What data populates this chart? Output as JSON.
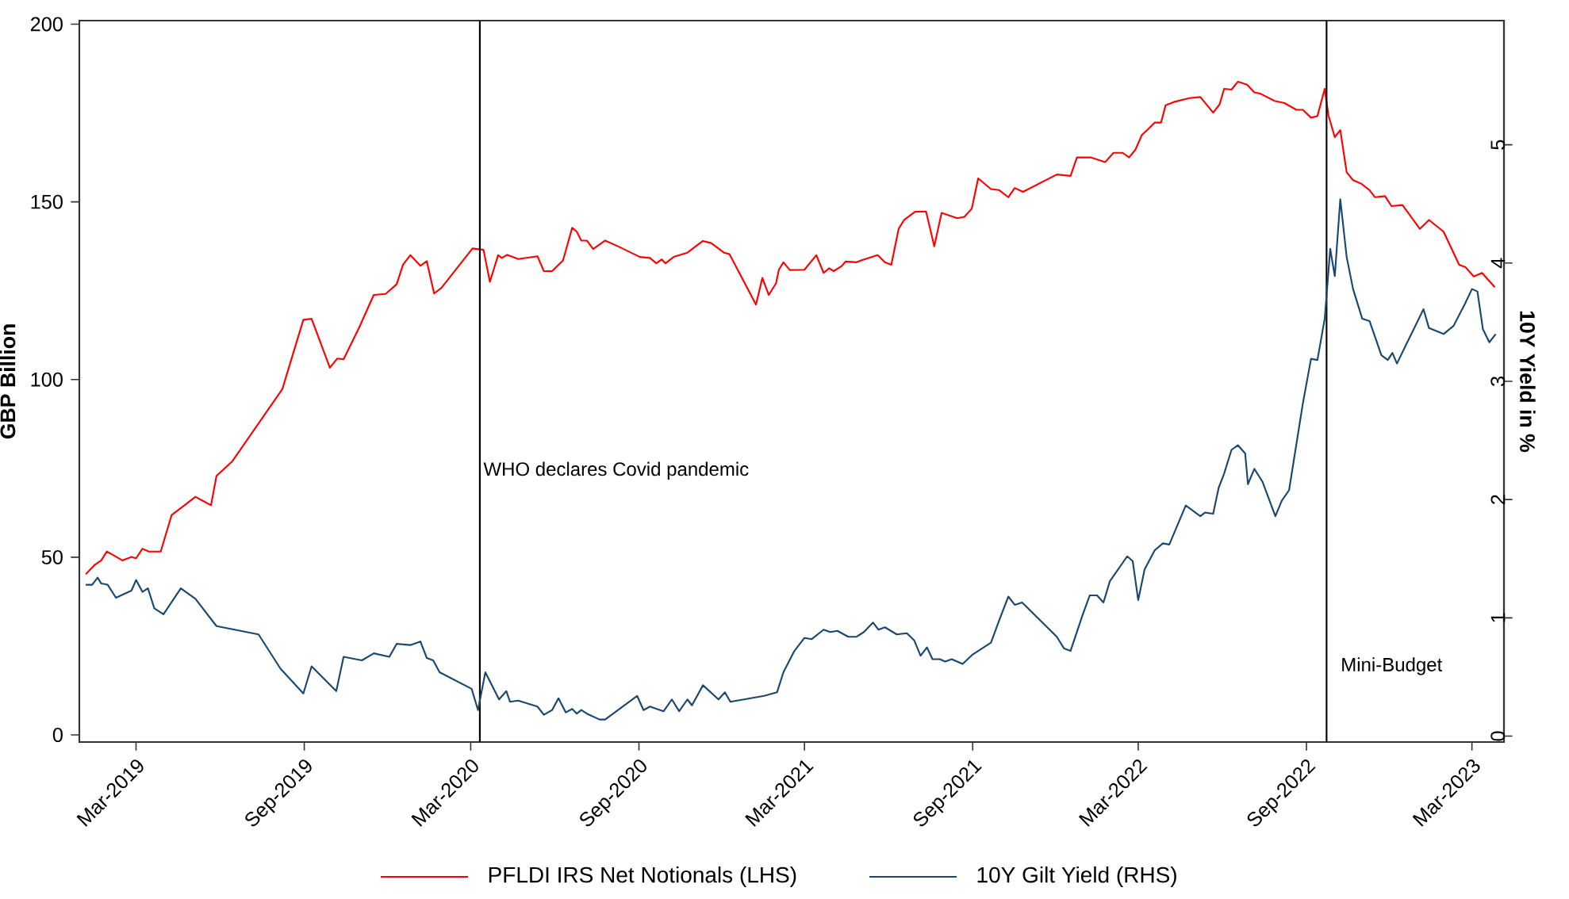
{
  "chart_data": {
    "type": "line",
    "xlabel": null,
    "ylabel": "GBP Billion",
    "y2label": "10Y Yield in %",
    "xlim": [
      "2018-12-29",
      "2023-04-05"
    ],
    "xticks": [
      {
        "value": "2019-03-01",
        "label": "Mar-2019"
      },
      {
        "value": "2019-09-01",
        "label": "Sep-2019"
      },
      {
        "value": "2020-03-01",
        "label": "Mar-2020"
      },
      {
        "value": "2020-09-01",
        "label": "Sep-2020"
      },
      {
        "value": "2021-03-01",
        "label": "Mar-2021"
      },
      {
        "value": "2021-09-01",
        "label": "Sep-2021"
      },
      {
        "value": "2022-03-01",
        "label": "Mar-2022"
      },
      {
        "value": "2022-09-01",
        "label": "Sep-2022"
      },
      {
        "value": "2023-03-01",
        "label": "Mar-2023"
      }
    ],
    "ylim": [
      -2,
      201
    ],
    "yticks": [
      0,
      50,
      100,
      150,
      200
    ],
    "y2lim": [
      -0.05,
      6.05
    ],
    "y2ticks": [
      0,
      1,
      2,
      3,
      4,
      5
    ],
    "grid": false,
    "legend": "bottom",
    "ref_lines": [
      {
        "axis": "x",
        "value": "2020-03-11",
        "label": "WHO declares Covid pandemic",
        "color": "#000000"
      },
      {
        "axis": "x",
        "value": "2022-09-23",
        "label": "Mini-Budget",
        "color": "#000000"
      }
    ],
    "series": [
      {
        "name": "PFLDI IRS Net Notionals (LHS)",
        "color": "#ff0000",
        "axis": "y",
        "x": [
          "2019-01-05",
          "2019-01-15",
          "2019-01-22",
          "2019-01-28",
          "2019-02-04",
          "2019-02-14",
          "2019-02-24",
          "2019-03-01",
          "2019-03-08",
          "2019-03-15",
          "2019-03-28",
          "2019-04-09",
          "2019-04-23",
          "2019-05-05",
          "2019-05-22",
          "2019-05-28",
          "2019-06-14",
          "2019-08-08",
          "2019-08-31",
          "2019-09-09",
          "2019-09-29",
          "2019-10-07",
          "2019-10-14",
          "2019-10-31",
          "2019-11-16",
          "2019-11-29",
          "2019-12-11",
          "2019-12-18",
          "2019-12-26",
          "2020-01-06",
          "2020-01-13",
          "2020-01-21",
          "2020-01-29",
          "2020-03-03",
          "2020-03-15",
          "2020-03-22",
          "2020-03-31",
          "2020-04-04",
          "2020-04-10",
          "2020-04-22",
          "2020-05-13",
          "2020-05-20",
          "2020-05-29",
          "2020-06-10",
          "2020-06-20",
          "2020-06-25",
          "2020-06-30",
          "2020-07-06",
          "2020-07-13",
          "2020-07-26",
          "2020-08-09",
          "2020-09-02",
          "2020-09-13",
          "2020-09-20",
          "2020-09-26",
          "2020-09-30",
          "2020-10-09",
          "2020-10-24",
          "2020-11-10",
          "2020-11-19",
          "2020-12-03",
          "2020-12-09",
          "2021-01-07",
          "2021-01-14",
          "2021-01-21",
          "2021-01-29",
          "2021-02-01",
          "2021-02-06",
          "2021-02-13",
          "2021-03-01",
          "2021-03-14",
          "2021-03-22",
          "2021-03-28",
          "2021-04-02",
          "2021-04-11",
          "2021-04-15",
          "2021-04-27",
          "2021-05-02",
          "2021-05-20",
          "2021-05-28",
          "2021-06-04",
          "2021-06-12",
          "2021-06-18",
          "2021-06-30",
          "2021-07-12",
          "2021-07-21",
          "2021-07-29",
          "2021-08-15",
          "2021-08-23",
          "2021-08-31",
          "2021-09-07",
          "2021-09-21",
          "2021-09-30",
          "2021-10-10",
          "2021-10-17",
          "2021-10-26",
          "2021-12-02",
          "2021-12-17",
          "2021-12-24",
          "2022-01-08",
          "2022-01-24",
          "2022-02-02",
          "2022-02-12",
          "2022-02-19",
          "2022-02-26",
          "2022-03-05",
          "2022-03-12",
          "2022-03-19",
          "2022-03-26",
          "2022-03-31",
          "2022-04-09",
          "2022-04-26",
          "2022-05-08",
          "2022-05-22",
          "2022-05-29",
          "2022-06-03",
          "2022-06-11",
          "2022-06-18",
          "2022-06-28",
          "2022-07-06",
          "2022-07-13",
          "2022-07-28",
          "2022-08-08",
          "2022-08-21",
          "2022-08-28",
          "2022-09-06",
          "2022-09-13",
          "2022-09-21",
          "2022-09-25",
          "2022-10-02",
          "2022-10-08",
          "2022-10-15",
          "2022-10-22",
          "2022-10-31",
          "2022-11-09",
          "2022-11-15",
          "2022-11-26",
          "2022-12-03",
          "2022-12-15",
          "2023-01-03",
          "2023-01-13",
          "2023-01-29",
          "2023-02-15",
          "2023-02-22",
          "2023-03-03",
          "2023-03-12",
          "2023-03-26"
        ],
        "values": [
          45.2,
          47.9,
          49.1,
          51.6,
          50.6,
          49.1,
          50.1,
          49.7,
          52.4,
          51.6,
          51.6,
          61.9,
          64.6,
          67.0,
          64.6,
          72.9,
          76.9,
          97.3,
          116.8,
          117.1,
          103.3,
          105.9,
          105.7,
          114.6,
          123.8,
          124.1,
          126.8,
          132.3,
          135.0,
          132.0,
          133.3,
          124.2,
          125.8,
          136.9,
          136.5,
          127.5,
          135.0,
          134.2,
          135.1,
          133.9,
          134.7,
          130.5,
          130.5,
          133.5,
          142.7,
          141.6,
          139.1,
          139.1,
          136.7,
          139.1,
          137.5,
          134.5,
          134.2,
          132.7,
          133.8,
          132.7,
          134.5,
          135.7,
          139.0,
          138.4,
          135.7,
          135.3,
          121.1,
          128.6,
          123.8,
          127.1,
          130.9,
          133.0,
          130.8,
          130.9,
          135.0,
          130.0,
          131.3,
          130.5,
          132.0,
          133.2,
          133.0,
          133.5,
          135.0,
          133.0,
          132.3,
          142.4,
          144.9,
          147.2,
          147.3,
          137.5,
          146.9,
          145.4,
          145.8,
          148.1,
          156.6,
          153.6,
          153.3,
          151.3,
          153.9,
          152.8,
          157.7,
          157.3,
          162.5,
          162.5,
          161.2,
          163.8,
          163.8,
          162.5,
          164.7,
          168.8,
          170.5,
          172.3,
          172.3,
          177.2,
          178.1,
          179.2,
          179.5,
          175.1,
          177.4,
          181.8,
          181.6,
          183.8,
          183.0,
          180.8,
          180.4,
          178.4,
          177.8,
          175.9,
          175.9,
          173.7,
          174.1,
          181.8,
          174.4,
          168.2,
          170.2,
          158.3,
          156.1,
          155.1,
          153.3,
          151.3,
          151.6,
          148.8,
          149.1,
          142.4,
          144.9,
          141.6,
          132.3,
          131.6,
          129.0,
          130.0,
          126.0
        ]
      },
      {
        "name": "10Y Gilt Yield (RHS)",
        "color": "#1a476f",
        "axis": "y2",
        "x": [
          "2019-01-05",
          "2019-01-12",
          "2019-01-18",
          "2019-01-22",
          "2019-01-29",
          "2019-02-07",
          "2019-02-24",
          "2019-03-01",
          "2019-03-08",
          "2019-03-14",
          "2019-03-21",
          "2019-03-31",
          "2019-04-19",
          "2019-05-05",
          "2019-05-28",
          "2019-07-13",
          "2019-08-06",
          "2019-08-31",
          "2019-09-09",
          "2019-10-06",
          "2019-10-14",
          "2019-11-03",
          "2019-11-16",
          "2019-12-03",
          "2019-12-11",
          "2019-12-26",
          "2020-01-06",
          "2020-01-13",
          "2020-01-20",
          "2020-01-27",
          "2020-03-02",
          "2020-03-09",
          "2020-03-17",
          "2020-04-01",
          "2020-04-09",
          "2020-04-13",
          "2020-04-22",
          "2020-05-13",
          "2020-05-20",
          "2020-05-29",
          "2020-06-05",
          "2020-06-13",
          "2020-06-20",
          "2020-06-25",
          "2020-06-30",
          "2020-07-06",
          "2020-07-20",
          "2020-07-26",
          "2020-08-30",
          "2020-09-06",
          "2020-09-13",
          "2020-09-28",
          "2020-10-07",
          "2020-10-15",
          "2020-10-24",
          "2020-10-29",
          "2020-11-10",
          "2020-11-27",
          "2020-12-04",
          "2020-12-10",
          "2021-01-16",
          "2021-01-30",
          "2021-02-06",
          "2021-02-18",
          "2021-03-01",
          "2021-03-09",
          "2021-03-22",
          "2021-03-29",
          "2021-04-06",
          "2021-04-18",
          "2021-04-27",
          "2021-05-05",
          "2021-05-15",
          "2021-05-21",
          "2021-05-28",
          "2021-06-10",
          "2021-06-21",
          "2021-06-29",
          "2021-07-06",
          "2021-07-13",
          "2021-07-19",
          "2021-07-27",
          "2021-08-02",
          "2021-08-09",
          "2021-08-21",
          "2021-09-01",
          "2021-09-21",
          "2021-09-30",
          "2021-10-10",
          "2021-10-17",
          "2021-10-25",
          "2021-12-02",
          "2021-12-10",
          "2021-12-17",
          "2021-12-30",
          "2022-01-07",
          "2022-01-15",
          "2022-01-22",
          "2022-01-29",
          "2022-02-17",
          "2022-02-23",
          "2022-03-01",
          "2022-03-08",
          "2022-03-19",
          "2022-03-28",
          "2022-04-04",
          "2022-04-22",
          "2022-05-08",
          "2022-05-13",
          "2022-05-22",
          "2022-05-28",
          "2022-06-03",
          "2022-06-11",
          "2022-06-18",
          "2022-06-26",
          "2022-06-29",
          "2022-07-06",
          "2022-07-15",
          "2022-07-29",
          "2022-08-05",
          "2022-08-13",
          "2022-08-20",
          "2022-08-28",
          "2022-09-06",
          "2022-09-13",
          "2022-09-21",
          "2022-09-27",
          "2022-10-02",
          "2022-10-08",
          "2022-10-15",
          "2022-10-22",
          "2022-11-01",
          "2022-11-09",
          "2022-11-22",
          "2022-11-29",
          "2022-12-04",
          "2022-12-09",
          "2022-12-19",
          "2023-01-07",
          "2023-01-13",
          "2023-01-29",
          "2023-02-09",
          "2023-02-21",
          "2023-03-01",
          "2023-03-07",
          "2023-03-13",
          "2023-03-20",
          "2023-03-27"
        ],
        "values": [
          1.28,
          1.28,
          1.34,
          1.29,
          1.28,
          1.17,
          1.23,
          1.32,
          1.22,
          1.25,
          1.08,
          1.03,
          1.25,
          1.16,
          0.93,
          0.86,
          0.57,
          0.36,
          0.59,
          0.38,
          0.67,
          0.64,
          0.7,
          0.67,
          0.78,
          0.77,
          0.8,
          0.66,
          0.64,
          0.54,
          0.4,
          0.22,
          0.54,
          0.31,
          0.38,
          0.29,
          0.3,
          0.25,
          0.18,
          0.22,
          0.32,
          0.2,
          0.23,
          0.19,
          0.22,
          0.19,
          0.14,
          0.14,
          0.34,
          0.22,
          0.25,
          0.21,
          0.31,
          0.21,
          0.31,
          0.26,
          0.43,
          0.31,
          0.37,
          0.29,
          0.34,
          0.37,
          0.54,
          0.72,
          0.83,
          0.82,
          0.9,
          0.88,
          0.89,
          0.84,
          0.84,
          0.88,
          0.96,
          0.9,
          0.92,
          0.86,
          0.87,
          0.81,
          0.68,
          0.75,
          0.65,
          0.65,
          0.63,
          0.65,
          0.61,
          0.69,
          0.79,
          0.98,
          1.18,
          1.11,
          1.13,
          0.84,
          0.74,
          0.72,
          1.02,
          1.19,
          1.19,
          1.13,
          1.31,
          1.52,
          1.48,
          1.15,
          1.41,
          1.57,
          1.63,
          1.62,
          1.95,
          1.86,
          1.89,
          1.88,
          2.1,
          2.22,
          2.42,
          2.46,
          2.39,
          2.13,
          2.26,
          2.15,
          1.86,
          1.99,
          2.08,
          2.42,
          2.81,
          3.19,
          3.18,
          3.53,
          4.12,
          3.89,
          4.54,
          4.05,
          3.78,
          3.53,
          3.51,
          3.22,
          3.18,
          3.24,
          3.15,
          3.31,
          3.61,
          3.45,
          3.4,
          3.47,
          3.65,
          3.78,
          3.76,
          3.44,
          3.33,
          3.4
        ]
      }
    ]
  }
}
